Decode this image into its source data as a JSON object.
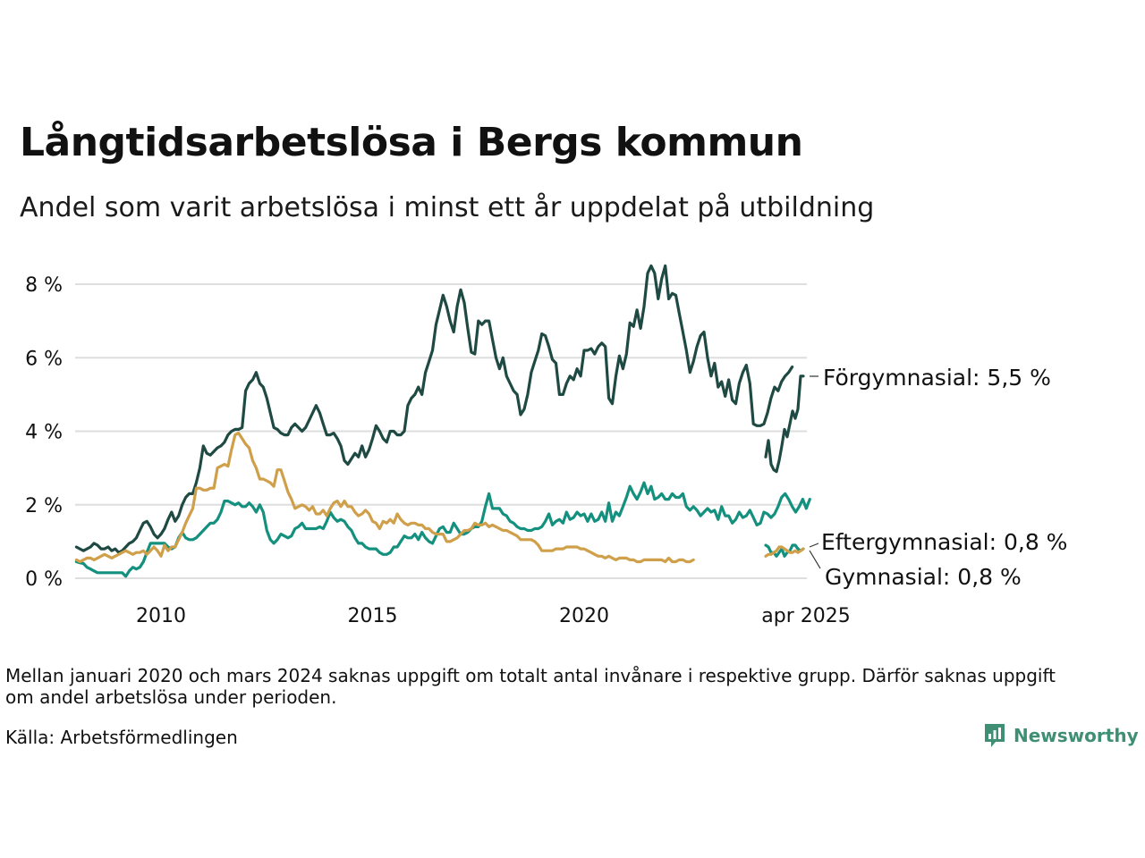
{
  "title": "Långtidsarbetslösa i Bergs kommun",
  "subtitle": "Andel som varit arbetslösa i minst ett år uppdelat på utbildning",
  "note": "Mellan januari 2020 och mars 2024 saknas uppgift om totalt antal invånare i respektive grupp. Därför saknas uppgift om andel arbetslösa under perioden.",
  "source": "Källa: Arbetsförmedlingen",
  "brand": {
    "name": "Newsworthy",
    "icon": "newsworthy-logo-icon",
    "color": "#3f8f74"
  },
  "chart_data": {
    "type": "line",
    "ylim": [
      0,
      8.5
    ],
    "y_ticks": [
      {
        "value": 0,
        "label": "0 %"
      },
      {
        "value": 2,
        "label": "2 %"
      },
      {
        "value": 4,
        "label": "4 %"
      },
      {
        "value": 6,
        "label": "6 %"
      },
      {
        "value": 8,
        "label": "8 %"
      }
    ],
    "x_ticks": [
      {
        "value": "2010-01",
        "label": "2010"
      },
      {
        "value": "2015-01",
        "label": "2015"
      },
      {
        "value": "2020-01",
        "label": "2020"
      },
      {
        "value": "2025-04",
        "label": "apr 2025"
      }
    ],
    "grid": true,
    "series": [
      {
        "name": "Förgymnasial",
        "end_label": "Förgymnasial: 5,5 %",
        "color": "#1f4a43",
        "segments": [
          {
            "start": "2008-01",
            "values": [
              0.85,
              0.8,
              0.75,
              0.8,
              0.85,
              0.95,
              0.9,
              0.8,
              0.8,
              0.85,
              0.75,
              0.8,
              0.7,
              0.75,
              0.85,
              0.95,
              1.0,
              1.1,
              1.3,
              1.5,
              1.55,
              1.4,
              1.2,
              1.1,
              1.2,
              1.35,
              1.6,
              1.8,
              1.55,
              1.7,
              2.0,
              2.2,
              2.3,
              2.3,
              2.6,
              3.0,
              3.6,
              3.4,
              3.35,
              3.45,
              3.55,
              3.6,
              3.7,
              3.9,
              4.0,
              4.05,
              4.05,
              4.1,
              5.1,
              5.3,
              5.4,
              5.6,
              5.3,
              5.2,
              4.9,
              4.5,
              4.1,
              4.05,
              3.95,
              3.9,
              3.9,
              4.1,
              4.2,
              4.1,
              4.0,
              4.1,
              4.3,
              4.5,
              4.7,
              4.5,
              4.2,
              3.9,
              3.9,
              3.95,
              3.8,
              3.6,
              3.2,
              3.1,
              3.25,
              3.4,
              3.3,
              3.6,
              3.3,
              3.5,
              3.8,
              4.15,
              4.0,
              3.8,
              3.7,
              4.0,
              4.0,
              3.9,
              3.9,
              4.0,
              4.7,
              4.9,
              5.0,
              5.2,
              5.0,
              5.6,
              5.9,
              6.2,
              6.9,
              7.3,
              7.7,
              7.4,
              7.0,
              6.7,
              7.4,
              7.85,
              7.5,
              6.8,
              6.15,
              6.1,
              7.0,
              6.9,
              7.0,
              7.0,
              6.5,
              6.0,
              5.7,
              6.0,
              5.5,
              5.3,
              5.1,
              5.0,
              4.45,
              4.6,
              5.0,
              5.6,
              5.9,
              6.2,
              6.65,
              6.6,
              6.3,
              5.95,
              5.85,
              5.0,
              5.0,
              5.3,
              5.5,
              5.4,
              5.7,
              5.5,
              6.2,
              6.2,
              6.25,
              6.1,
              6.3,
              6.4,
              6.3,
              4.9,
              4.75,
              5.5,
              6.05,
              5.7,
              6.1,
              6.95,
              6.85,
              7.3,
              6.8,
              7.4,
              8.3,
              8.5,
              8.3,
              7.6,
              8.15,
              8.5,
              7.6,
              7.75,
              7.7,
              7.2,
              6.7,
              6.2,
              5.6,
              5.9,
              6.3,
              6.6,
              6.7,
              6.0,
              5.5,
              5.85,
              5.2,
              5.35,
              4.95,
              5.4,
              4.85,
              4.75,
              5.3,
              5.6,
              5.8,
              5.3,
              4.2,
              4.15,
              4.15,
              4.2,
              4.5,
              4.9,
              5.2,
              5.1,
              5.35,
              5.5,
              5.6,
              5.75
            ]
          },
          {
            "start": "2024-04",
            "values": [
              3.3,
              3.75,
              3.1,
              2.95,
              2.9,
              3.2,
              3.6,
              4.05,
              3.85,
              4.2,
              4.55,
              4.35,
              4.6,
              5.5,
              5.5
            ]
          }
        ]
      },
      {
        "name": "Eftergymnasial",
        "end_label": "Eftergymnasial: 0,8 %",
        "color": "#14907e",
        "segments": [
          {
            "start": "2008-01",
            "values": [
              0.45,
              0.42,
              0.4,
              0.3,
              0.25,
              0.2,
              0.15,
              0.15,
              0.15,
              0.15,
              0.15,
              0.15,
              0.15,
              0.15,
              0.05,
              0.2,
              0.3,
              0.25,
              0.3,
              0.45,
              0.7,
              0.95,
              0.95,
              0.95,
              0.95,
              0.95,
              0.85,
              0.8,
              0.85,
              1.1,
              1.25,
              1.1,
              1.05,
              1.05,
              1.1,
              1.2,
              1.3,
              1.4,
              1.5,
              1.5,
              1.6,
              1.8,
              2.1,
              2.1,
              2.05,
              2.0,
              2.05,
              1.95,
              1.95,
              2.05,
              1.95,
              1.8,
              2.0,
              1.8,
              1.3,
              1.05,
              0.95,
              1.05,
              1.2,
              1.15,
              1.1,
              1.15,
              1.35,
              1.4,
              1.5,
              1.35,
              1.35,
              1.35,
              1.35,
              1.4,
              1.35,
              1.55,
              1.8,
              1.65,
              1.55,
              1.6,
              1.55,
              1.4,
              1.3,
              1.1,
              0.95,
              0.95,
              0.85,
              0.8,
              0.8,
              0.8,
              0.7,
              0.65,
              0.65,
              0.7,
              0.85,
              0.85,
              1.0,
              1.15,
              1.1,
              1.1,
              1.2,
              1.05,
              1.25,
              1.1,
              1.0,
              0.95,
              1.15,
              1.35,
              1.4,
              1.25,
              1.25,
              1.5,
              1.35,
              1.2,
              1.2,
              1.25,
              1.35,
              1.4,
              1.4,
              1.55,
              1.95,
              2.3,
              1.9,
              1.9,
              1.9,
              1.75,
              1.7,
              1.55,
              1.5,
              1.4,
              1.35,
              1.35,
              1.3,
              1.3,
              1.35,
              1.35,
              1.4,
              1.55,
              1.75,
              1.45,
              1.55,
              1.6,
              1.5,
              1.8,
              1.6,
              1.65,
              1.8,
              1.7,
              1.75,
              1.55,
              1.75,
              1.55,
              1.6,
              1.8,
              1.55,
              2.05,
              1.55,
              1.8,
              1.7,
              1.95,
              2.2,
              2.5,
              2.3,
              2.15,
              2.35,
              2.6,
              2.3,
              2.5,
              2.15,
              2.2,
              2.3,
              2.15,
              2.15,
              2.3,
              2.2,
              2.2,
              2.3,
              1.95,
              1.85,
              1.95,
              1.85,
              1.7,
              1.8,
              1.9,
              1.8,
              1.85,
              1.6,
              1.95,
              1.7,
              1.7,
              1.5,
              1.6,
              1.8,
              1.65,
              1.7,
              1.85,
              1.65,
              1.45,
              1.5,
              1.8,
              1.75,
              1.65,
              1.75,
              1.95,
              2.2,
              2.3,
              2.15,
              1.95,
              1.8,
              1.95,
              2.15,
              1.9,
              2.15
            ]
          },
          {
            "start": "2024-04",
            "values": [
              0.9,
              0.85,
              0.7,
              0.7,
              0.6,
              0.7,
              0.8,
              0.6,
              0.7,
              0.75,
              0.9,
              0.9,
              0.8,
              0.75,
              0.8
            ]
          }
        ]
      },
      {
        "name": "Gymnasial",
        "end_label": "Gymnasial: 0,8 %",
        "color": "#cf9f4a",
        "segments": [
          {
            "start": "2008-01",
            "values": [
              0.5,
              0.45,
              0.5,
              0.55,
              0.55,
              0.5,
              0.55,
              0.6,
              0.65,
              0.6,
              0.55,
              0.6,
              0.65,
              0.7,
              0.75,
              0.7,
              0.65,
              0.7,
              0.7,
              0.75,
              0.65,
              0.75,
              0.85,
              0.75,
              0.6,
              0.9,
              0.75,
              0.85,
              0.85,
              1.05,
              1.25,
              1.5,
              1.7,
              1.9,
              2.45,
              2.45,
              2.4,
              2.4,
              2.45,
              2.45,
              3.0,
              3.05,
              3.1,
              3.05,
              3.5,
              3.9,
              3.95,
              3.8,
              3.65,
              3.55,
              3.2,
              3.0,
              2.7,
              2.7,
              2.65,
              2.6,
              2.5,
              2.95,
              2.95,
              2.65,
              2.35,
              2.15,
              1.9,
              1.95,
              2.0,
              1.95,
              1.85,
              1.95,
              1.75,
              1.75,
              1.85,
              1.7,
              1.9,
              2.05,
              2.1,
              1.95,
              2.1,
              1.95,
              1.95,
              1.8,
              1.7,
              1.75,
              1.85,
              1.75,
              1.55,
              1.5,
              1.35,
              1.55,
              1.5,
              1.6,
              1.5,
              1.75,
              1.6,
              1.5,
              1.45,
              1.5,
              1.5,
              1.45,
              1.45,
              1.35,
              1.35,
              1.25,
              1.2,
              1.2,
              1.2,
              1.0,
              1.0,
              1.05,
              1.1,
              1.2,
              1.3,
              1.3,
              1.35,
              1.5,
              1.45,
              1.45,
              1.5,
              1.4,
              1.45,
              1.4,
              1.35,
              1.3,
              1.3,
              1.25,
              1.2,
              1.15,
              1.05,
              1.05,
              1.05,
              1.05,
              1.0,
              0.9,
              0.75,
              0.75,
              0.75,
              0.75,
              0.8,
              0.8,
              0.8,
              0.85,
              0.85,
              0.85,
              0.85,
              0.8,
              0.8,
              0.75,
              0.7,
              0.65,
              0.6,
              0.6,
              0.55,
              0.6,
              0.55,
              0.5,
              0.55,
              0.55,
              0.55,
              0.5,
              0.5,
              0.45,
              0.45,
              0.5,
              0.5,
              0.5,
              0.5,
              0.5,
              0.5,
              0.45,
              0.55,
              0.45,
              0.45,
              0.5,
              0.5,
              0.45,
              0.45,
              0.5
            ]
          },
          {
            "start": "2024-04",
            "values": [
              0.6,
              0.65,
              0.65,
              0.7,
              0.75,
              0.85,
              0.85,
              0.8,
              0.75,
              0.7,
              0.7,
              0.75,
              0.7,
              0.75,
              0.8
            ]
          }
        ]
      }
    ]
  }
}
